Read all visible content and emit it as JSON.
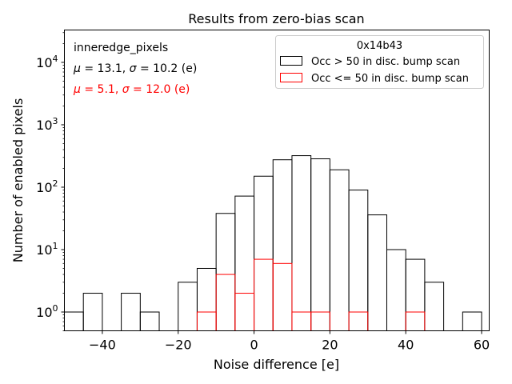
{
  "chart_data": {
    "type": "histogram",
    "title": "Results from zero-bias scan",
    "xlabel": "Noise difference [e]",
    "ylabel": "Number of enabled pixels",
    "xlim": [
      -50,
      62
    ],
    "ylim": [
      0.5,
      33000
    ],
    "yscale": "log",
    "grid": false,
    "x_ticks": [
      -40,
      -20,
      0,
      20,
      40,
      60
    ],
    "x_tick_labels": [
      "−40",
      "−20",
      "0",
      "20",
      "40",
      "60"
    ],
    "y_ticks": [
      1,
      10,
      100,
      1000,
      10000
    ],
    "y_tick_labels": [
      {
        "base": "10",
        "exp": "0"
      },
      {
        "base": "10",
        "exp": "1"
      },
      {
        "base": "10",
        "exp": "2"
      },
      {
        "base": "10",
        "exp": "3"
      },
      {
        "base": "10",
        "exp": "4"
      }
    ],
    "bin_edges": [
      -50,
      -45,
      -40,
      -35,
      -30,
      -25,
      -20,
      -15,
      -10,
      -5,
      0,
      5,
      10,
      15,
      20,
      25,
      30,
      35,
      40,
      45,
      50,
      55,
      60
    ],
    "series": [
      {
        "name": "Occ > 50 in disc. bump scan",
        "color": "#000000",
        "counts": [
          1,
          2,
          0,
          2,
          1,
          0,
          3,
          5,
          38,
          72,
          150,
          275,
          320,
          285,
          190,
          90,
          36,
          10,
          7,
          3,
          0,
          1
        ]
      },
      {
        "name": "Occ <= 50 in disc. bump scan",
        "color": "#ff0000",
        "counts": [
          0,
          0,
          0,
          0,
          0,
          0,
          0,
          1,
          4,
          2,
          7,
          6,
          1,
          1,
          0,
          1,
          0,
          0,
          1,
          0,
          0,
          0
        ]
      }
    ],
    "legend": {
      "title": "0x14b43",
      "placement": "upper-right"
    },
    "annotations": [
      {
        "text": "inneredge_pixels",
        "color": "#000000"
      },
      {
        "parts": [
          {
            "t": "μ",
            "italic": true
          },
          {
            "t": " = 13.1, "
          },
          {
            "t": "σ",
            "italic": true
          },
          {
            "t": " = 10.2 (e)"
          }
        ],
        "color": "#000000"
      },
      {
        "parts": [
          {
            "t": "μ",
            "italic": true
          },
          {
            "t": " = 5.1, "
          },
          {
            "t": "σ",
            "italic": true
          },
          {
            "t": " = 12.0 (e)"
          }
        ],
        "color": "#ff0000"
      }
    ]
  }
}
